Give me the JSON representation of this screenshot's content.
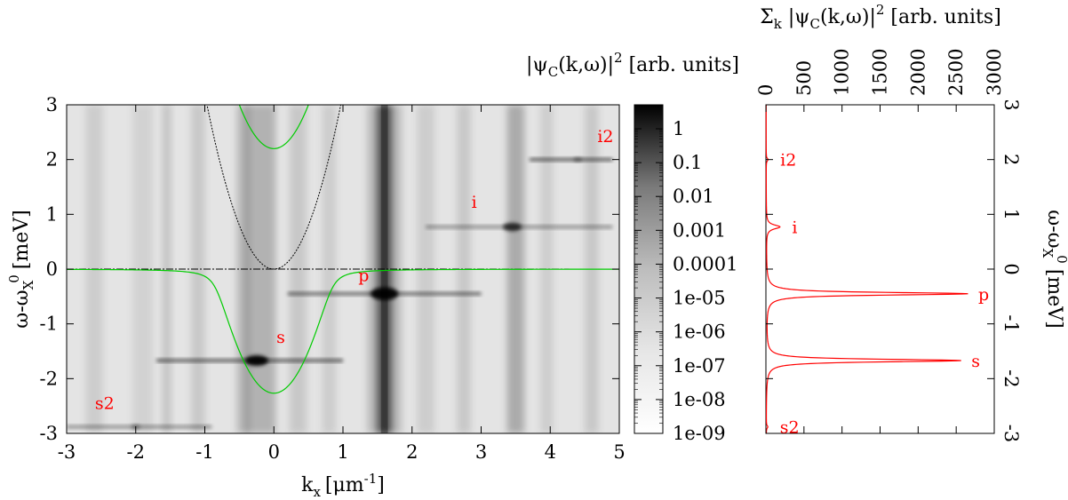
{
  "chart_data": [
    {
      "type": "heatmap",
      "xlabel_base": "k",
      "xlabel_sub": "x",
      "xlabel_unit_pre": "[μm",
      "xlabel_unit_sup": "-1",
      "xlabel_unit_post": "]",
      "ylabel_pre": "ω-ω",
      "ylabel_sub": "X",
      "ylabel_sup": "0",
      "ylabel_post": "[meV]",
      "xlim": [
        -3,
        5
      ],
      "ylim": [
        -3,
        3
      ],
      "xticks": [
        "-3",
        "-2",
        "-1",
        "0",
        "1",
        "2",
        "3",
        "4",
        "5"
      ],
      "yticks": [
        "-3",
        "-2",
        "-1",
        "0",
        "1",
        "2",
        "3"
      ],
      "colorbar_title_pre": "|ψ",
      "colorbar_title_sub": "C",
      "colorbar_title_mid": "(k,ω)|",
      "colorbar_title_sup": "2",
      "colorbar_title_post": " [arb. units]",
      "colorbar_scale": "log",
      "colorbar_ticks": [
        "1",
        "0.1",
        "0.01",
        "0.001",
        "0.0001",
        "1e-05",
        "1e-06",
        "1e-07",
        "1e-08",
        "1e-09"
      ],
      "colormap": "white-to-black (grayscale)",
      "green_curves": "lower and upper polariton branches",
      "curve_colors": {
        "polariton": "#00cc00",
        "free": "#000000",
        "label": "#ff0000"
      },
      "points": [
        {
          "label": "s2",
          "x": -2.0,
          "y": -2.88
        },
        {
          "label": "s",
          "x": -0.25,
          "y": -1.67
        },
        {
          "label": "p",
          "x": 1.6,
          "y": -0.45
        },
        {
          "label": "i",
          "x": 3.45,
          "y": 0.77
        },
        {
          "label": "i2",
          "x": 4.4,
          "y": 2.0
        }
      ]
    },
    {
      "type": "line",
      "title_pre": "Σ",
      "title_sub": "k",
      "title_mid": " |ψ",
      "title_sub2": "C",
      "title_mid2": "(k,ω)|",
      "title_sup": "2",
      "title_post": " [arb. units]",
      "xlim": [
        0,
        3000
      ],
      "xticks": [
        "0",
        "500",
        "1000",
        "1500",
        "2000",
        "2500",
        "3000"
      ],
      "ylim": [
        -3,
        3
      ],
      "yticks": [
        "3",
        "2",
        "1",
        "0",
        "-1",
        "-2",
        "-3"
      ],
      "ylabel_pre": "ω-ω",
      "ylabel_sub": "X",
      "ylabel_sup": "0",
      "ylabel_post": "[meV]",
      "color": "#ff0000",
      "peaks": [
        {
          "label": "s2",
          "y": -2.88,
          "value": 20
        },
        {
          "label": "s",
          "y": -1.67,
          "value": 2560
        },
        {
          "label": "p",
          "y": -0.45,
          "value": 2650
        },
        {
          "label": "i",
          "y": 0.77,
          "value": 180
        },
        {
          "label": "i2",
          "y": 2.0,
          "value": 25
        }
      ]
    }
  ]
}
